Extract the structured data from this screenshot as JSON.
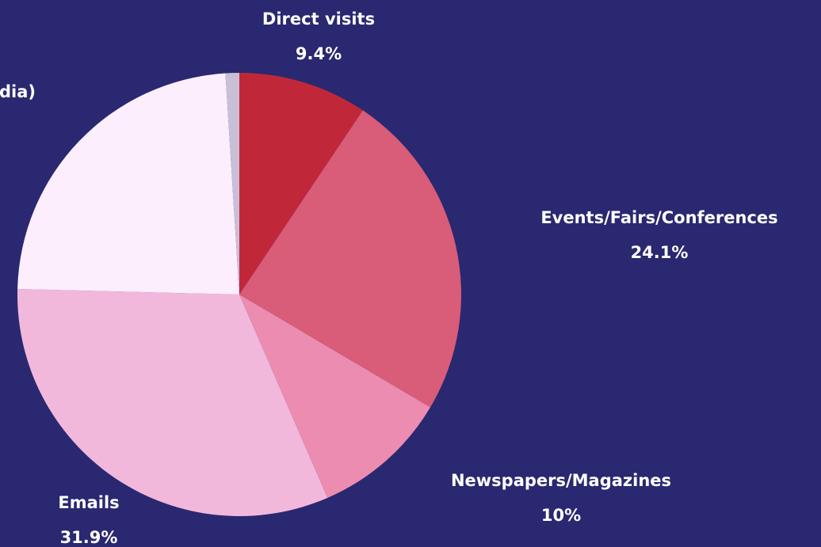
{
  "chart_data": {
    "type": "pie",
    "categories": [
      "Direct visits",
      "Events/Fairs/Conferences",
      "Newspapers/Magazines",
      "Emails",
      "dia)",
      null
    ],
    "values": [
      9.4,
      24.1,
      10,
      31.9,
      23.6,
      1.0
    ],
    "value_labels": [
      "9.4%",
      "24.1%",
      "10%",
      "31.9%",
      null,
      null
    ],
    "colors": [
      "#c0283a",
      "#d95c78",
      "#eb8cb0",
      "#f2b8dc",
      "#fdeefd",
      "#c9c0d8"
    ]
  }
}
